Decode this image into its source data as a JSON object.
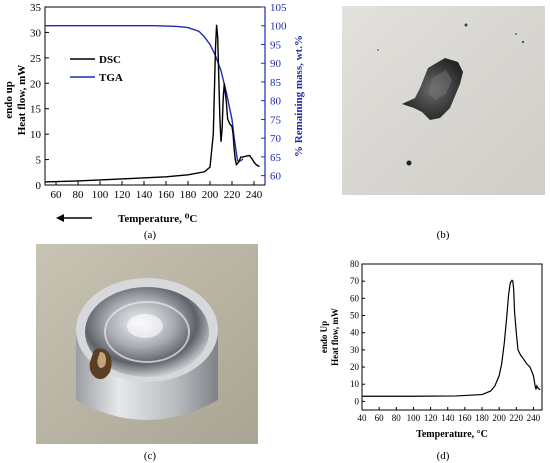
{
  "captions": [
    "(a)",
    "(b)",
    "(c)",
    "(d)"
  ],
  "chart_data": [
    {
      "type": "line",
      "panel": "(a)",
      "xlabel": "Temperature, ⁰C",
      "ylabel_left": [
        "endo up",
        "Heat flow, mW"
      ],
      "ylabel_right": "% Remaining mass, wt.%",
      "xlim": [
        50,
        250
      ],
      "ylim_left": [
        0,
        35
      ],
      "ylim_right": [
        57.5,
        105
      ],
      "x_ticks": [
        "60",
        "80",
        "100",
        "120",
        "140",
        "160",
        "180",
        "200",
        "220",
        "240"
      ],
      "y_ticks_left": [
        "0",
        "5",
        "10",
        "15",
        "20",
        "25",
        "30",
        "35"
      ],
      "y_ticks_right": [
        "60",
        "65",
        "70",
        "75",
        "80",
        "85",
        "90",
        "95",
        "100",
        "105"
      ],
      "arrow_direction": "left",
      "legend_placement": "top-left",
      "series": [
        {
          "name": "DSC",
          "axis": "left",
          "color": "#000000",
          "x": [
            50,
            80,
            120,
            160,
            180,
            195,
            200,
            203,
            205,
            206,
            207,
            208,
            209,
            210,
            211,
            212,
            213,
            214,
            215,
            216,
            218,
            220,
            221,
            222,
            223,
            224,
            226,
            228,
            230,
            233,
            236,
            238,
            240,
            242,
            245
          ],
          "y": [
            0.6,
            0.8,
            1.2,
            1.6,
            2.0,
            2.6,
            3.5,
            10,
            27,
            31.5,
            29,
            21,
            13,
            8.5,
            11,
            17,
            20,
            18,
            16,
            13,
            12,
            11.5,
            10,
            7,
            5,
            4,
            4.5,
            5.5,
            5.5,
            5.7,
            5.8,
            5.2,
            4.5,
            4.0,
            3.6
          ]
        },
        {
          "name": "TGA",
          "axis": "right",
          "color": "#1f2bb0",
          "x": [
            50,
            100,
            150,
            170,
            180,
            190,
            195,
            200,
            205,
            210,
            215,
            220,
            222,
            224,
            225,
            226,
            228,
            230
          ],
          "y": [
            100,
            100,
            100,
            99.8,
            99.5,
            98.5,
            97,
            95,
            92,
            88,
            82,
            75,
            70,
            66,
            64,
            63.8,
            64,
            64.5
          ]
        }
      ]
    },
    {
      "type": "line",
      "panel": "(d)",
      "xlabel": "Temperature, °C",
      "ylabel": [
        "endo Up",
        "Heat flow, mW"
      ],
      "xlim": [
        40,
        250
      ],
      "ylim": [
        -5,
        80
      ],
      "x_ticks": [
        "40",
        "60",
        "80",
        "100",
        "120",
        "140",
        "160",
        "180",
        "200",
        "220",
        "240"
      ],
      "y_ticks": [
        "0",
        "10",
        "20",
        "30",
        "40",
        "50",
        "60",
        "70",
        "80"
      ],
      "series": [
        {
          "color": "#000000",
          "x": [
            40,
            100,
            150,
            180,
            190,
            195,
            200,
            203,
            206,
            209,
            211,
            213,
            215,
            216,
            217,
            218,
            220,
            222,
            225,
            228,
            232,
            236,
            240,
            242,
            243,
            244,
            245,
            247,
            248
          ],
          "y": [
            3,
            3,
            3.2,
            4,
            6,
            9,
            15,
            22,
            34,
            50,
            62,
            69,
            70.5,
            70,
            65,
            52,
            40,
            30,
            27,
            25,
            22,
            20,
            15,
            9,
            7,
            9,
            8,
            7,
            7
          ]
        }
      ]
    }
  ],
  "photos": {
    "b": "residue-on-paper",
    "c": "sealed-metal-pan"
  }
}
